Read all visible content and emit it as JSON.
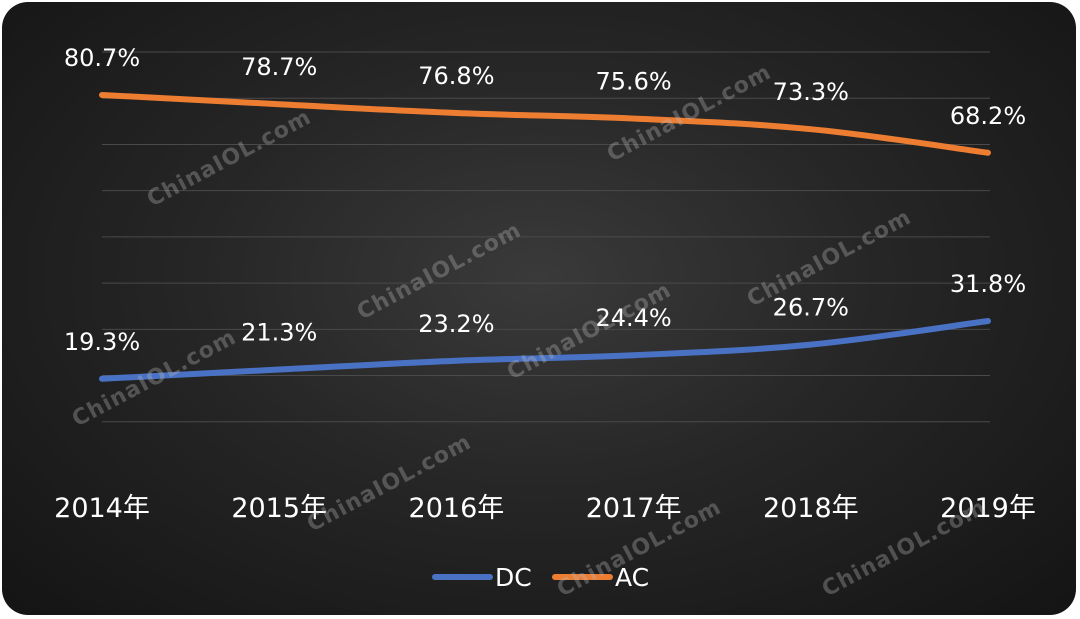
{
  "chart_data": {
    "type": "line",
    "categories": [
      "2014年",
      "2015年",
      "2016年",
      "2017年",
      "2018年",
      "2019年"
    ],
    "series": [
      {
        "name": "DC",
        "color": "#4a72c4",
        "values": [
          19.3,
          21.3,
          23.2,
          24.4,
          26.7,
          31.8
        ],
        "labels": [
          "19.3%",
          "21.3%",
          "23.2%",
          "24.4%",
          "26.7%",
          "31.8%"
        ]
      },
      {
        "name": "AC",
        "color": "#ed7d31",
        "values": [
          80.7,
          78.7,
          76.8,
          75.6,
          73.3,
          68.2
        ],
        "labels": [
          "80.7%",
          "78.7%",
          "76.8%",
          "75.6%",
          "73.3%",
          "68.2%"
        ]
      }
    ],
    "ylim": [
      0,
      90
    ],
    "grid": true,
    "legend_position": "bottom",
    "title": "",
    "xlabel": "",
    "ylabel": ""
  },
  "watermark": "ChinaIOL.com",
  "colors": {
    "background": "#222222",
    "grid": "#4a4a4a",
    "text": "#ffffff"
  }
}
